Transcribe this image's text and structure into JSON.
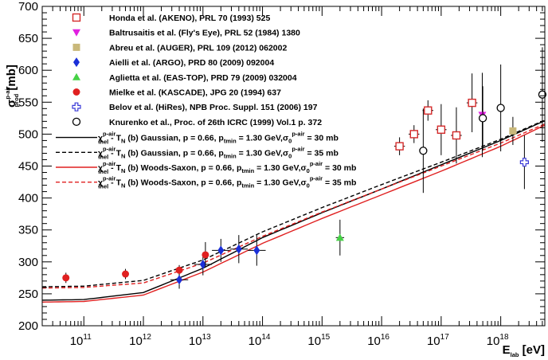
{
  "chart_data": {
    "type": "scatter",
    "xscale": "log",
    "xlim": [
      20000000000.0,
      5.5e+18
    ],
    "ylim": [
      200,
      700
    ],
    "yticks": [
      200,
      250,
      300,
      350,
      400,
      450,
      500,
      550,
      600,
      650,
      700
    ],
    "xtick_labels": [
      {
        "x": 100000000000.0,
        "base": "10",
        "exp": "11"
      },
      {
        "x": 1000000000000.0,
        "base": "10",
        "exp": "12"
      },
      {
        "x": 10000000000000.0,
        "base": "10",
        "exp": "13"
      },
      {
        "x": 100000000000000.0,
        "base": "10",
        "exp": "14"
      },
      {
        "x": 1000000000000000.0,
        "base": "10",
        "exp": "15"
      },
      {
        "x": 1e+16,
        "base": "10",
        "exp": "16"
      },
      {
        "x": 1e+17,
        "base": "10",
        "exp": "17"
      },
      {
        "x": 1e+18,
        "base": "10",
        "exp": "18"
      }
    ],
    "xlabel": {
      "main": "E",
      "sub": "lab",
      "unit": " [eV]"
    },
    "ylabel": {
      "main": "σ",
      "sup": "p-air",
      "sub": "prod",
      "unit": " [mb]"
    },
    "legend_placement": "top-left",
    "experiments": [
      {
        "name": "Honda et al. (AKENO), PRL 70 (1993) 525",
        "marker": "open-square",
        "color": "#d42a2a",
        "points": [
          {
            "x": 2e+16,
            "y": 481,
            "err": 14,
            "xerr": 0.09
          },
          {
            "x": 3.5e+16,
            "y": 500,
            "err": 14,
            "xerr": 0.09
          },
          {
            "x": 6e+16,
            "y": 537,
            "err": 16,
            "xerr": 0.09
          },
          {
            "x": 1e+17,
            "y": 507,
            "err": 40,
            "xerr": 0.09
          },
          {
            "x": 1.8e+17,
            "y": 498,
            "err": 44,
            "xerr": 0.09
          },
          {
            "x": 3.3e+17,
            "y": 549,
            "err": 46,
            "xerr": 0.09
          }
        ]
      },
      {
        "name": "Baltrusaitis et al. (Fly's Eye), PRL 52 (1984) 1380",
        "marker": "triangle-down",
        "color": "#e020e0",
        "points": [
          {
            "x": 4.9e+17,
            "y": 530,
            "err": 66,
            "xerr": 0
          }
        ]
      },
      {
        "name": "Abreu et al. (AUGER), PRL 109 (2012) 062002",
        "marker": "square",
        "color": "#c9b87a",
        "points": [
          {
            "x": 1.6e+18,
            "y": 505,
            "err": 22,
            "xerr": 0.06
          }
        ]
      },
      {
        "name": "Aielli et al. (ARGO), PRD 80 (2009) 092004",
        "marker": "diamond",
        "color": "#1a2fd8",
        "points": [
          {
            "x": 4000000000000.0,
            "y": 272,
            "err": 14,
            "xerr": 0.15
          },
          {
            "x": 10000000000000.0,
            "y": 296,
            "err": 17,
            "xerr": 0.15
          },
          {
            "x": 20000000000000.0,
            "y": 318,
            "err": 18,
            "xerr": 0.15
          },
          {
            "x": 40000000000000.0,
            "y": 320,
            "err": 22,
            "xerr": 0.15
          },
          {
            "x": 80000000000000.0,
            "y": 318,
            "err": 24,
            "xerr": 0.15
          }
        ]
      },
      {
        "name": "Aglietta et al. (EAS-TOP), PRD 79 (2009) 032004",
        "marker": "triangle-up",
        "color": "#46d246",
        "points": [
          {
            "x": 2000000000000000.0,
            "y": 338,
            "err": 28,
            "xerr": 0.07
          }
        ]
      },
      {
        "name": "Mielke et al. (KASCADE), JPG 20 (1994) 637",
        "marker": "circle",
        "color": "#e02020",
        "points": [
          {
            "x": 50000000000.0,
            "y": 275,
            "err": 8,
            "xerr": 0
          },
          {
            "x": 500000000000.0,
            "y": 281,
            "err": 8,
            "xerr": 0
          },
          {
            "x": 4000000000000.0,
            "y": 287,
            "err": 8,
            "xerr": 0
          },
          {
            "x": 11000000000000.0,
            "y": 311,
            "err": 20,
            "xerr": 0
          }
        ]
      },
      {
        "name": "Belov et al. (HiRes), NPB Proc. Suppl. 151 (2006) 197",
        "marker": "open-cross",
        "color": "#3a3ad8",
        "points": [
          {
            "x": 2.5e+18,
            "y": 456,
            "err": 42,
            "xerr": 0
          }
        ]
      },
      {
        "name": "Knurenko et al., Proc. of 26th ICRC (1999) Vol.1 p. 372",
        "marker": "open-circle",
        "color": "#000000",
        "points": [
          {
            "x": 5e+16,
            "y": 474,
            "err": 66,
            "xerr": 0
          },
          {
            "x": 5e+17,
            "y": 525,
            "err": 50,
            "xerr": 0
          },
          {
            "x": 1e+18,
            "y": 541,
            "err": 68,
            "xerr": 0
          },
          {
            "x": 5e+18,
            "y": 562,
            "err": 74,
            "xerr": 0
          }
        ]
      }
    ],
    "curves": [
      {
        "label_parts": {
          "chi": "χ",
          "chi_sup": "p-air",
          "chi_sub": "inel",
          "mid": " - T",
          "mid_sub": "N",
          "model": " (b) Gaussian, p = 0.66, p",
          "p_sub": "tmin",
          "energy": " = 1.30 GeV,σ",
          "sig_sub": "0",
          "sig_sup": "p-air",
          "end": " = 30 mb"
        },
        "color": "#000000",
        "dash": "",
        "x": [
          20000000000.0,
          100000000000.0,
          1000000000000.0,
          10000000000000.0,
          100000000000000.0,
          1000000000000000.0,
          1e+16,
          1e+17,
          1e+18,
          5.5e+18
        ],
        "y": [
          240,
          241,
          252,
          290,
          338,
          377,
          414,
          452,
          490,
          521
        ]
      },
      {
        "label_parts": {
          "chi": "χ",
          "chi_sup": "p-air",
          "chi_sub": "inel",
          "mid": " - T",
          "mid_sub": "N",
          "model": " (b) Gaussian, p = 0.66, p",
          "p_sub": "tmin",
          "energy": " = 1.30 GeV,σ",
          "sig_sub": "0",
          "sig_sup": "p-air",
          "end": " = 35 mb"
        },
        "color": "#000000",
        "dash": "5,3",
        "x": [
          20000000000.0,
          100000000000.0,
          1000000000000.0,
          10000000000000.0,
          100000000000000.0,
          1000000000000000.0,
          1e+16,
          1e+17,
          1e+18,
          5.5e+18
        ],
        "y": [
          261,
          262,
          271,
          303,
          347,
          385,
          421,
          456,
          492,
          522
        ]
      },
      {
        "label_parts": {
          "chi": "χ",
          "chi_sup": "p-air",
          "chi_sub": "inel",
          "mid": " - T",
          "mid_sub": "N",
          "model": " (b) Woods-Saxon, p = 0.66, p",
          "p_sub": "tmin",
          "energy": " = 1.30 GeV,σ",
          "sig_sub": "0",
          "sig_sup": "p-air",
          "end": " = 30 mb"
        },
        "color": "#e02020",
        "dash": "",
        "x": [
          20000000000.0,
          100000000000.0,
          1000000000000.0,
          10000000000000.0,
          100000000000000.0,
          1000000000000000.0,
          1e+16,
          1e+17,
          1e+18,
          5.5e+18
        ],
        "y": [
          237,
          238,
          248,
          284,
          329,
          368,
          405,
          442,
          481,
          514
        ]
      },
      {
        "label_parts": {
          "chi": "χ",
          "chi_sup": "p-air",
          "chi_sub": "inel",
          "mid": " - T",
          "mid_sub": "N",
          "model": " (b) Woods-Saxon, p = 0.66, p",
          "p_sub": "tmin",
          "energy": " = 1.30 GeV,σ",
          "sig_sub": "0",
          "sig_sup": "p-air",
          "end": " = 35 mb"
        },
        "color": "#e02020",
        "dash": "5,3",
        "x": [
          20000000000.0,
          100000000000.0,
          1000000000000.0,
          10000000000000.0,
          100000000000000.0,
          1000000000000000.0,
          1e+16,
          1e+17,
          1e+18,
          5.5e+18
        ],
        "y": [
          259,
          260,
          267,
          298,
          340,
          378,
          414,
          450,
          486,
          516
        ]
      }
    ]
  }
}
